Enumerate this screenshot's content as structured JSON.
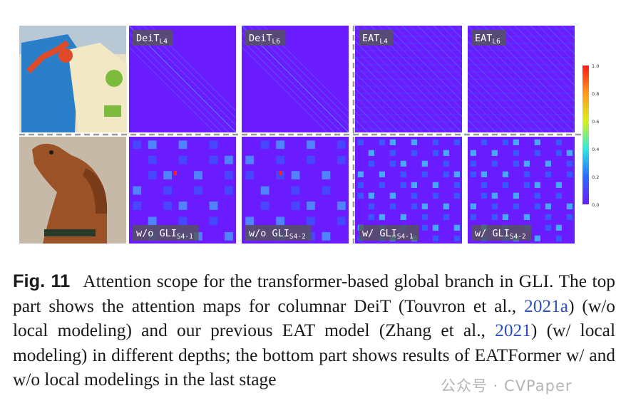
{
  "colors": {
    "heat_bg": "#6a1cff",
    "heat_mid": "#2a6cff",
    "heat_light": "#3ad8ff",
    "heat_hot": "#ff2020",
    "link": "#2a4fbf"
  },
  "panels_top": [
    {
      "label": "DeiT",
      "sub": "L4"
    },
    {
      "label": "DeiT",
      "sub": "L6"
    },
    {
      "label": "EAT",
      "sub": "L4"
    },
    {
      "label": "EAT",
      "sub": "L6"
    }
  ],
  "panels_bottom": [
    {
      "label": "w/o GLI",
      "sub": "S4-1"
    },
    {
      "label": "w/o GLI",
      "sub": "S4-2"
    },
    {
      "label": "w/ GLI",
      "sub": "S4-1"
    },
    {
      "label": "w/ GLI",
      "sub": "S4-2"
    }
  ],
  "colorbar": {
    "ticks": [
      "1.0",
      "0.8",
      "0.6",
      "0.4",
      "0.2",
      "0.0"
    ]
  },
  "caption": {
    "fig_label": "Fig. 11",
    "part1": "Attention scope for the transformer-based global branch in GLI. The top part shows the attention maps for columnar DeiT (Touvron et al., ",
    "link1": "2021a",
    "part2": ") (w/o local modeling) and our previous EAT model (Zhang et al., ",
    "link2": "2021",
    "part3": ") (w/ local modeling) in different depths; the bottom part shows results of EATFormer w/ and w/o local modelings in the last stage"
  },
  "watermark": "公众号 · CVPaper"
}
